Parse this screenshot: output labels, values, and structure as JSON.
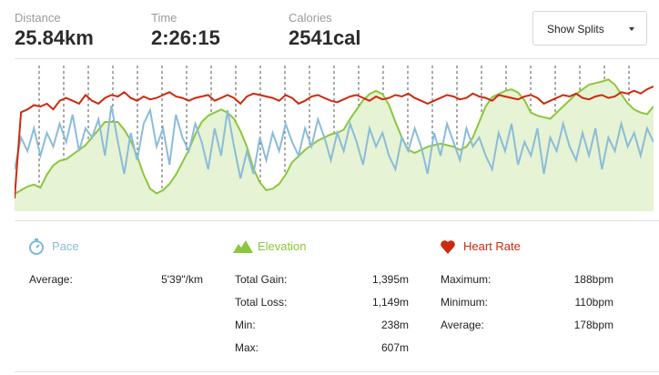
{
  "stats": {
    "distance": {
      "label": "Distance",
      "value": "25.84km"
    },
    "time": {
      "label": "Time",
      "value": "2:26:15"
    },
    "calories": {
      "label": "Calories",
      "value": "2541cal"
    }
  },
  "splits_dropdown": {
    "label": "Show Splits"
  },
  "colors": {
    "pace": "#8bbcd9",
    "elevation": "#8cc63f",
    "elevation_fill": "#e6f3d4",
    "heart_rate": "#cc2a0f"
  },
  "pace": {
    "title": "Pace",
    "icon": "stopwatch-icon",
    "rows": [
      {
        "label": "Average:",
        "value": "5'39\"/km"
      }
    ]
  },
  "elevation": {
    "title": "Elevation",
    "icon": "mountain-icon",
    "rows": [
      {
        "label": "Total Gain:",
        "value": "1,395m"
      },
      {
        "label": "Total Loss:",
        "value": "1,149m"
      },
      {
        "label": "Min:",
        "value": "238m"
      },
      {
        "label": "Max:",
        "value": "607m"
      }
    ]
  },
  "heart_rate": {
    "title": "Heart Rate",
    "icon": "heart-icon",
    "rows": [
      {
        "label": "Maximum:",
        "value": "188bpm"
      },
      {
        "label": "Minimum:",
        "value": "110bpm"
      },
      {
        "label": "Average:",
        "value": "178bpm"
      }
    ]
  },
  "chart_data": {
    "type": "area",
    "split_count": 26,
    "series": [
      {
        "key": "elevation",
        "values": [
          238,
          250,
          262,
          268,
          258,
          300,
          330,
          345,
          350,
          365,
          380,
          395,
          420,
          445,
          470,
          470,
          470,
          445,
          410,
          360,
          300,
          255,
          240,
          250,
          270,
          300,
          340,
          380,
          430,
          470,
          490,
          500,
          510,
          500,
          480,
          440,
          390,
          320,
          275,
          250,
          255,
          270,
          300,
          340,
          360,
          380,
          395,
          410,
          420,
          430,
          435,
          445,
          480,
          510,
          540,
          560,
          570,
          560,
          525,
          470,
          420,
          380,
          370,
          380,
          390,
          395,
          400,
          395,
          390,
          380,
          390,
          420,
          470,
          520,
          550,
          560,
          570,
          575,
          565,
          540,
          500,
          490,
          485,
          480,
          500,
          520,
          540,
          560,
          575,
          590,
          595,
          600,
          607,
          590,
          560,
          530,
          510,
          500,
          495,
          520
        ]
      },
      {
        "key": "heart_rate",
        "values": [
          110,
          170,
          172,
          175,
          174,
          176,
          172,
          178,
          180,
          178,
          176,
          182,
          178,
          176,
          180,
          182,
          181,
          184,
          180,
          178,
          181,
          179,
          180,
          182,
          184,
          181,
          180,
          178,
          180,
          181,
          182,
          178,
          180,
          182,
          180,
          176,
          181,
          183,
          182,
          181,
          180,
          178,
          182,
          180,
          176,
          178,
          181,
          182,
          180,
          178,
          177,
          179,
          181,
          182,
          180,
          178,
          181,
          179,
          180,
          182,
          181,
          183,
          180,
          178,
          176,
          178,
          180,
          182,
          181,
          179,
          180,
          183,
          181,
          180,
          178,
          182,
          181,
          180,
          179,
          181,
          182,
          180,
          176,
          178,
          180,
          182,
          181,
          183,
          180,
          179,
          181,
          182,
          180,
          181,
          184,
          183,
          185,
          183,
          186,
          188
        ]
      },
      {
        "key": "pace",
        "values": [
          6.2,
          5.5,
          5.8,
          5.3,
          5.9,
          5.4,
          5.7,
          5.2,
          5.6,
          5.0,
          5.8,
          5.3,
          5.5,
          5.1,
          5.9,
          4.8,
          5.6,
          6.3,
          5.4,
          6.0,
          5.2,
          4.9,
          5.7,
          5.3,
          6.1,
          5.0,
          5.5,
          5.8,
          5.2,
          5.6,
          6.2,
          5.3,
          5.9,
          4.9,
          5.7,
          6.4,
          5.8,
          6.3,
          5.5,
          6.0,
          5.4,
          5.8,
          5.2,
          5.6,
          5.9,
          5.3,
          5.7,
          5.1,
          5.5,
          6.0,
          5.4,
          5.8,
          5.2,
          5.6,
          6.1,
          5.3,
          5.7,
          5.4,
          5.9,
          6.2,
          5.5,
          5.8,
          5.3,
          5.7,
          6.3,
          5.4,
          5.9,
          5.2,
          5.6,
          6.0,
          5.3,
          5.7,
          5.5,
          5.9,
          6.2,
          5.4,
          5.8,
          5.2,
          6.1,
          5.6,
          5.9,
          5.3,
          6.3,
          5.5,
          5.8,
          5.2,
          5.7,
          6.0,
          5.4,
          5.9,
          5.3,
          6.2,
          5.5,
          5.8,
          5.2,
          5.7,
          5.4,
          5.9,
          5.3,
          5.6
        ]
      }
    ]
  }
}
